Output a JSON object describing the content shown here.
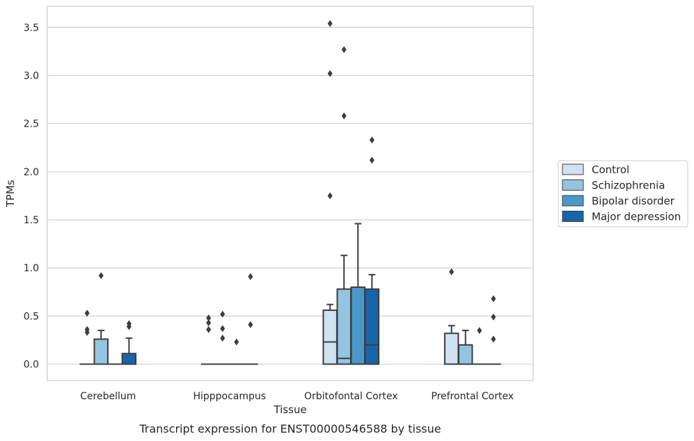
{
  "caption": "Transcript expression for ENST00000546588 by tissue",
  "chart_data": {
    "type": "box",
    "title": "",
    "xlabel": "Tissue",
    "ylabel": "TPMs",
    "ylim": [
      -0.17,
      3.72
    ],
    "yticks": [
      "0.0",
      "0.5",
      "1.0",
      "1.5",
      "2.0",
      "2.5",
      "3.0",
      "3.5"
    ],
    "grid": "horizontal",
    "legend_position": "right",
    "categories": [
      "Cerebellum",
      "Hipppocampus",
      "Orbitofontal Cortex",
      "Prefrontal Cortex"
    ],
    "series": [
      {
        "name": "Control",
        "color": "#d0e1f2",
        "boxes": [
          {
            "q1": 0,
            "median": 0,
            "q3": 0,
            "whisker_low": 0,
            "whisker_high": 0,
            "outliers": [
              0.33,
              0.36,
              0.53
            ]
          },
          {
            "q1": 0,
            "median": 0,
            "q3": 0,
            "whisker_low": 0,
            "whisker_high": 0,
            "outliers": [
              0.36,
              0.43,
              0.48
            ]
          },
          {
            "q1": 0,
            "median": 0.23,
            "q3": 0.56,
            "whisker_low": 0,
            "whisker_high": 0.62,
            "outliers": [
              1.75,
              3.02,
              3.54
            ]
          },
          {
            "q1": 0,
            "median": 0,
            "q3": 0.32,
            "whisker_low": 0,
            "whisker_high": 0.4,
            "outliers": [
              0.96
            ]
          }
        ]
      },
      {
        "name": "Schizophrenia",
        "color": "#94c4df",
        "boxes": [
          {
            "q1": 0,
            "median": 0,
            "q3": 0.26,
            "whisker_low": 0,
            "whisker_high": 0.35,
            "outliers": [
              0.92
            ]
          },
          {
            "q1": 0,
            "median": 0,
            "q3": 0,
            "whisker_low": 0,
            "whisker_high": 0,
            "outliers": [
              0.27,
              0.37,
              0.52
            ]
          },
          {
            "q1": 0,
            "median": 0.06,
            "q3": 0.78,
            "whisker_low": 0,
            "whisker_high": 1.13,
            "outliers": [
              2.58,
              3.27
            ]
          },
          {
            "q1": 0,
            "median": 0,
            "q3": 0.2,
            "whisker_low": 0,
            "whisker_high": 0.35,
            "outliers": []
          }
        ]
      },
      {
        "name": "Bipolar disorder",
        "color": "#4a98c9",
        "boxes": [
          {
            "q1": 0,
            "median": 0,
            "q3": 0,
            "whisker_low": 0,
            "whisker_high": 0,
            "outliers": []
          },
          {
            "q1": 0,
            "median": 0,
            "q3": 0,
            "whisker_low": 0,
            "whisker_high": 0,
            "outliers": [
              0.23
            ]
          },
          {
            "q1": 0,
            "median": 0,
            "q3": 0.8,
            "whisker_low": 0,
            "whisker_high": 1.46,
            "outliers": []
          },
          {
            "q1": 0,
            "median": 0,
            "q3": 0,
            "whisker_low": 0,
            "whisker_high": 0,
            "outliers": [
              0.35
            ]
          }
        ]
      },
      {
        "name": "Major depression",
        "color": "#1764ab",
        "boxes": [
          {
            "q1": 0,
            "median": 0,
            "q3": 0.11,
            "whisker_low": 0,
            "whisker_high": 0.27,
            "outliers": [
              0.39,
              0.42
            ]
          },
          {
            "q1": 0,
            "median": 0,
            "q3": 0,
            "whisker_low": 0,
            "whisker_high": 0,
            "outliers": [
              0.41,
              0.91
            ]
          },
          {
            "q1": 0,
            "median": 0.2,
            "q3": 0.78,
            "whisker_low": 0,
            "whisker_high": 0.93,
            "outliers": [
              2.12,
              2.33
            ]
          },
          {
            "q1": 0,
            "median": 0,
            "q3": 0,
            "whisker_low": 0,
            "whisker_high": 0,
            "outliers": [
              0.26,
              0.49,
              0.68
            ]
          }
        ]
      }
    ]
  }
}
